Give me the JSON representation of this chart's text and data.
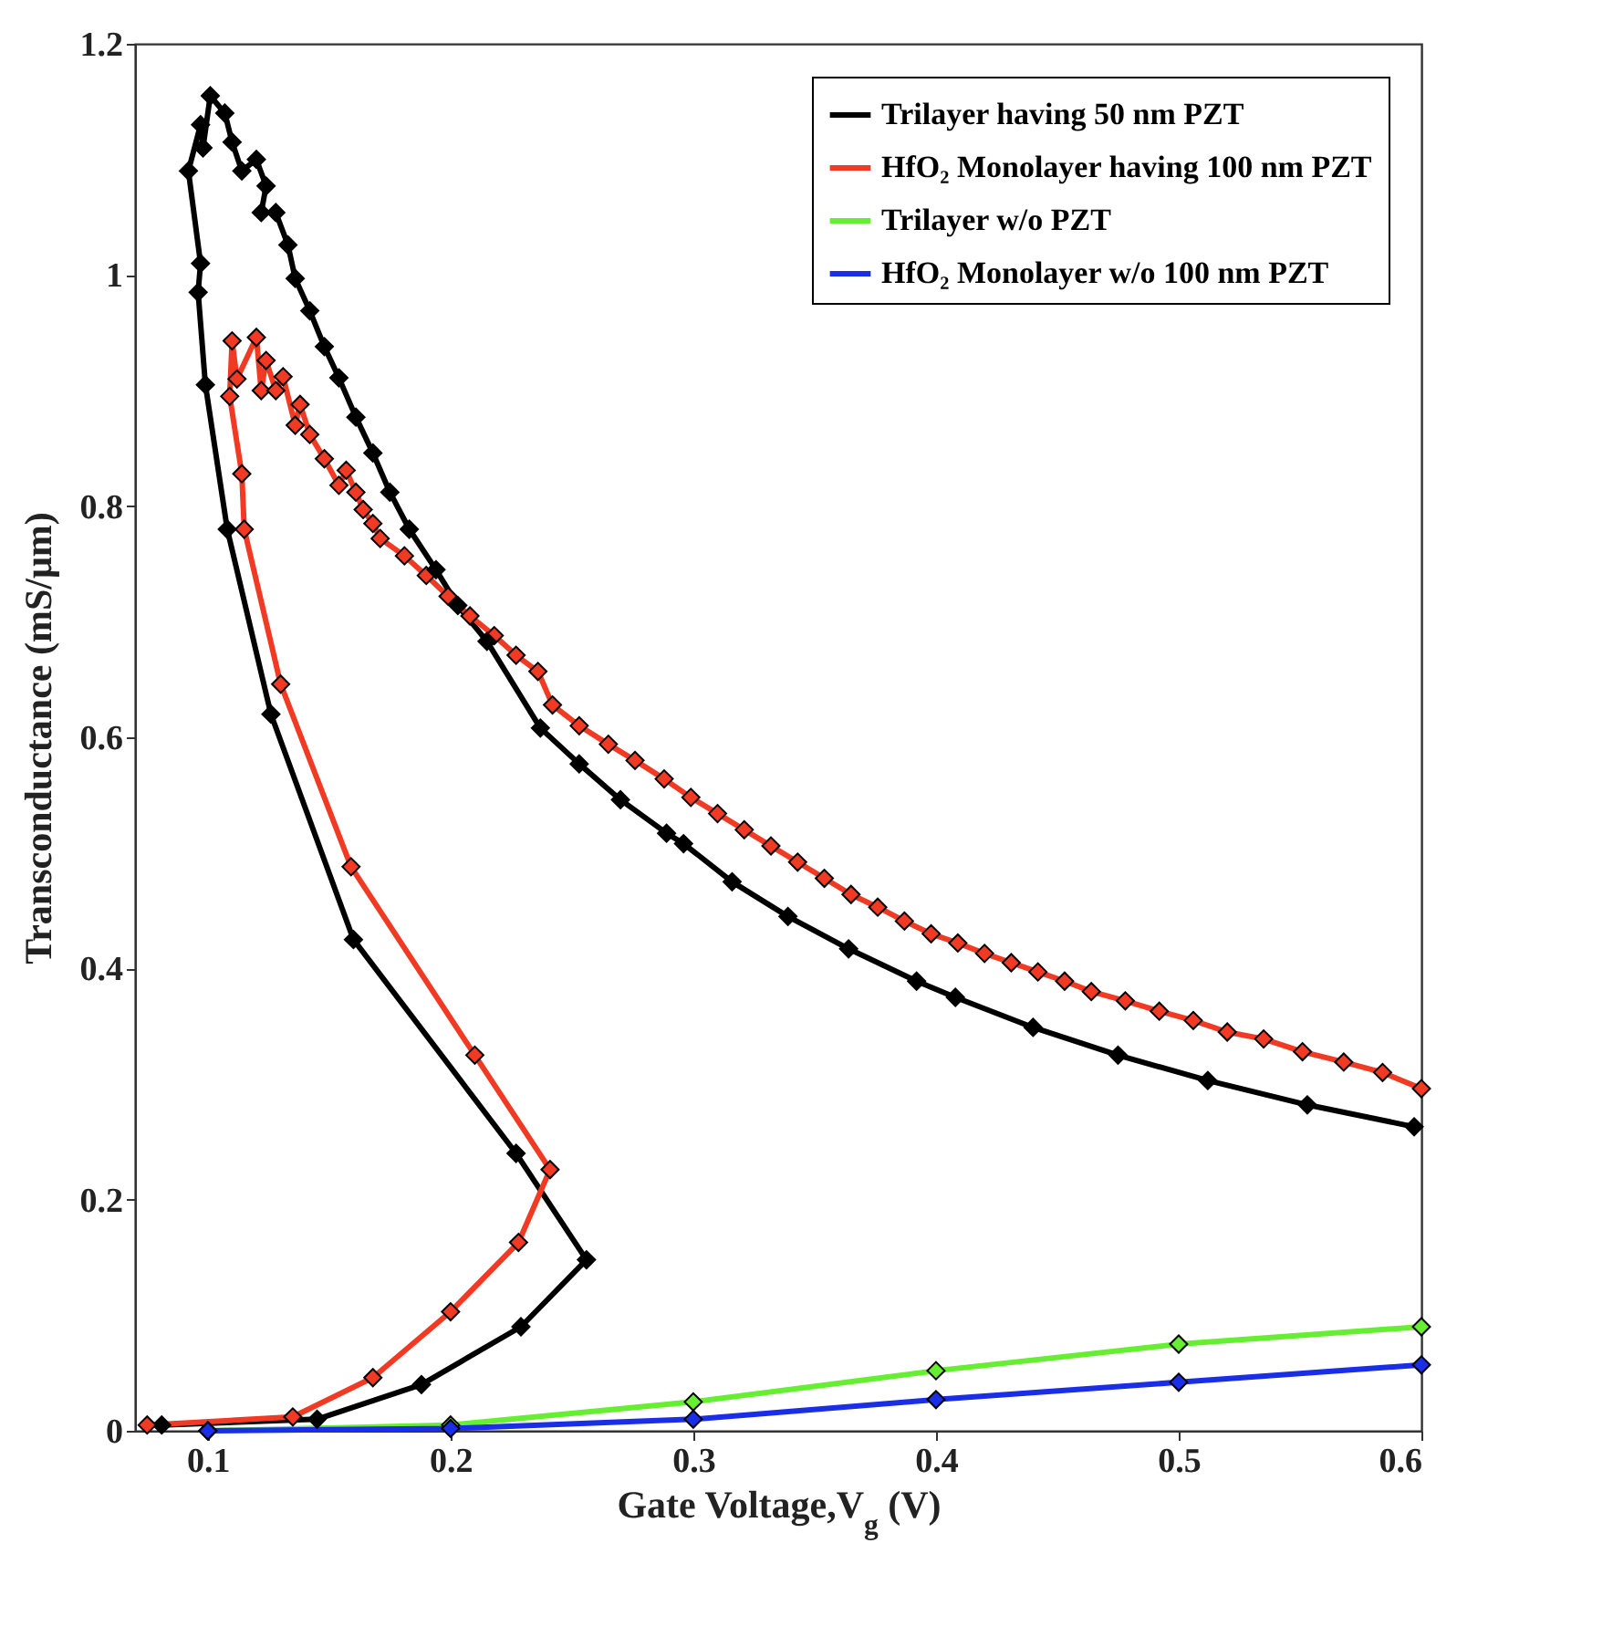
{
  "chart_data": {
    "type": "line",
    "xlabel": "Gate Voltage,V$_{g}$ (V)",
    "ylabel": "Transconductance (mS/μm)",
    "xlim": [
      0.07,
      0.6
    ],
    "ylim": [
      0,
      1.2
    ],
    "xticks": [
      0.1,
      0.2,
      0.3,
      0.4,
      0.5,
      0.6
    ],
    "yticks": [
      0,
      0.2,
      0.4,
      0.6,
      0.8,
      1,
      1.2
    ],
    "grid": false,
    "legend": "top right",
    "marker": "diamond",
    "line_style": "solid",
    "series": [
      {
        "name": "Trilayer having 50 nm PZT",
        "color": "#000000",
        "x": [
          0.081,
          0.145,
          0.188,
          0.229,
          0.256,
          0.227,
          0.16,
          0.126,
          0.108,
          0.099,
          0.096,
          0.097,
          0.092,
          0.097,
          0.098,
          0.101,
          0.107,
          0.11,
          0.114,
          0.12,
          0.124,
          0.122,
          0.128,
          0.133,
          0.136,
          0.142,
          0.148,
          0.154,
          0.161,
          0.168,
          0.175,
          0.183,
          0.194,
          0.203,
          0.215,
          0.237,
          0.253,
          0.27,
          0.289,
          0.296,
          0.316,
          0.339,
          0.364,
          0.392,
          0.408,
          0.44,
          0.475,
          0.512,
          0.553,
          0.597
        ],
        "values": [
          0.005,
          0.01,
          0.04,
          0.09,
          0.148,
          0.24,
          0.425,
          0.62,
          0.78,
          0.905,
          0.985,
          1.01,
          1.09,
          1.13,
          1.11,
          1.155,
          1.14,
          1.115,
          1.09,
          1.1,
          1.077,
          1.054,
          1.054,
          1.026,
          0.997,
          0.969,
          0.938,
          0.911,
          0.877,
          0.846,
          0.812,
          0.78,
          0.745,
          0.714,
          0.683,
          0.608,
          0.577,
          0.546,
          0.517,
          0.508,
          0.475,
          0.445,
          0.417,
          0.389,
          0.375,
          0.349,
          0.325,
          0.303,
          0.282,
          0.263
        ]
      },
      {
        "name": "HfO₂ Monolayer having 100 nm PZT",
        "color": "#f03a24",
        "x": [
          0.075,
          0.135,
          0.168,
          0.2,
          0.228,
          0.241,
          0.21,
          0.159,
          0.13,
          0.115,
          0.114,
          0.109,
          0.11,
          0.112,
          0.12,
          0.122,
          0.124,
          0.128,
          0.131,
          0.136,
          0.138,
          0.142,
          0.148,
          0.154,
          0.157,
          0.161,
          0.164,
          0.168,
          0.171,
          0.181,
          0.19,
          0.199,
          0.208,
          0.218,
          0.227,
          0.236,
          0.242,
          0.253,
          0.265,
          0.276,
          0.288,
          0.299,
          0.31,
          0.321,
          0.332,
          0.343,
          0.354,
          0.365,
          0.376,
          0.387,
          0.398,
          0.409,
          0.42,
          0.431,
          0.442,
          0.453,
          0.464,
          0.478,
          0.492,
          0.506,
          0.52,
          0.535,
          0.551,
          0.568,
          0.584,
          0.6
        ],
        "values": [
          0.005,
          0.012,
          0.046,
          0.103,
          0.163,
          0.226,
          0.325,
          0.488,
          0.646,
          0.78,
          0.828,
          0.895,
          0.943,
          0.91,
          0.946,
          0.9,
          0.926,
          0.9,
          0.912,
          0.87,
          0.888,
          0.862,
          0.841,
          0.818,
          0.831,
          0.812,
          0.797,
          0.785,
          0.772,
          0.757,
          0.74,
          0.722,
          0.705,
          0.688,
          0.671,
          0.657,
          0.628,
          0.61,
          0.594,
          0.58,
          0.564,
          0.548,
          0.534,
          0.52,
          0.506,
          0.492,
          0.478,
          0.464,
          0.453,
          0.441,
          0.43,
          0.422,
          0.413,
          0.405,
          0.397,
          0.389,
          0.38,
          0.372,
          0.363,
          0.355,
          0.345,
          0.339,
          0.328,
          0.319,
          0.31,
          0.296
        ]
      },
      {
        "name": "Trilayer w/o PZT",
        "color": "#66ee33",
        "x": [
          0.1,
          0.2,
          0.3,
          0.4,
          0.5,
          0.6
        ],
        "values": [
          0,
          0.005,
          0.025,
          0.052,
          0.075,
          0.09
        ]
      },
      {
        "name": "HfO₂ Monolayer w/o 100 nm PZT",
        "color": "#1a2ee8",
        "x": [
          0.1,
          0.2,
          0.3,
          0.4,
          0.5,
          0.6
        ],
        "values": [
          0,
          0.002,
          0.01,
          0.027,
          0.042,
          0.057
        ]
      }
    ]
  }
}
